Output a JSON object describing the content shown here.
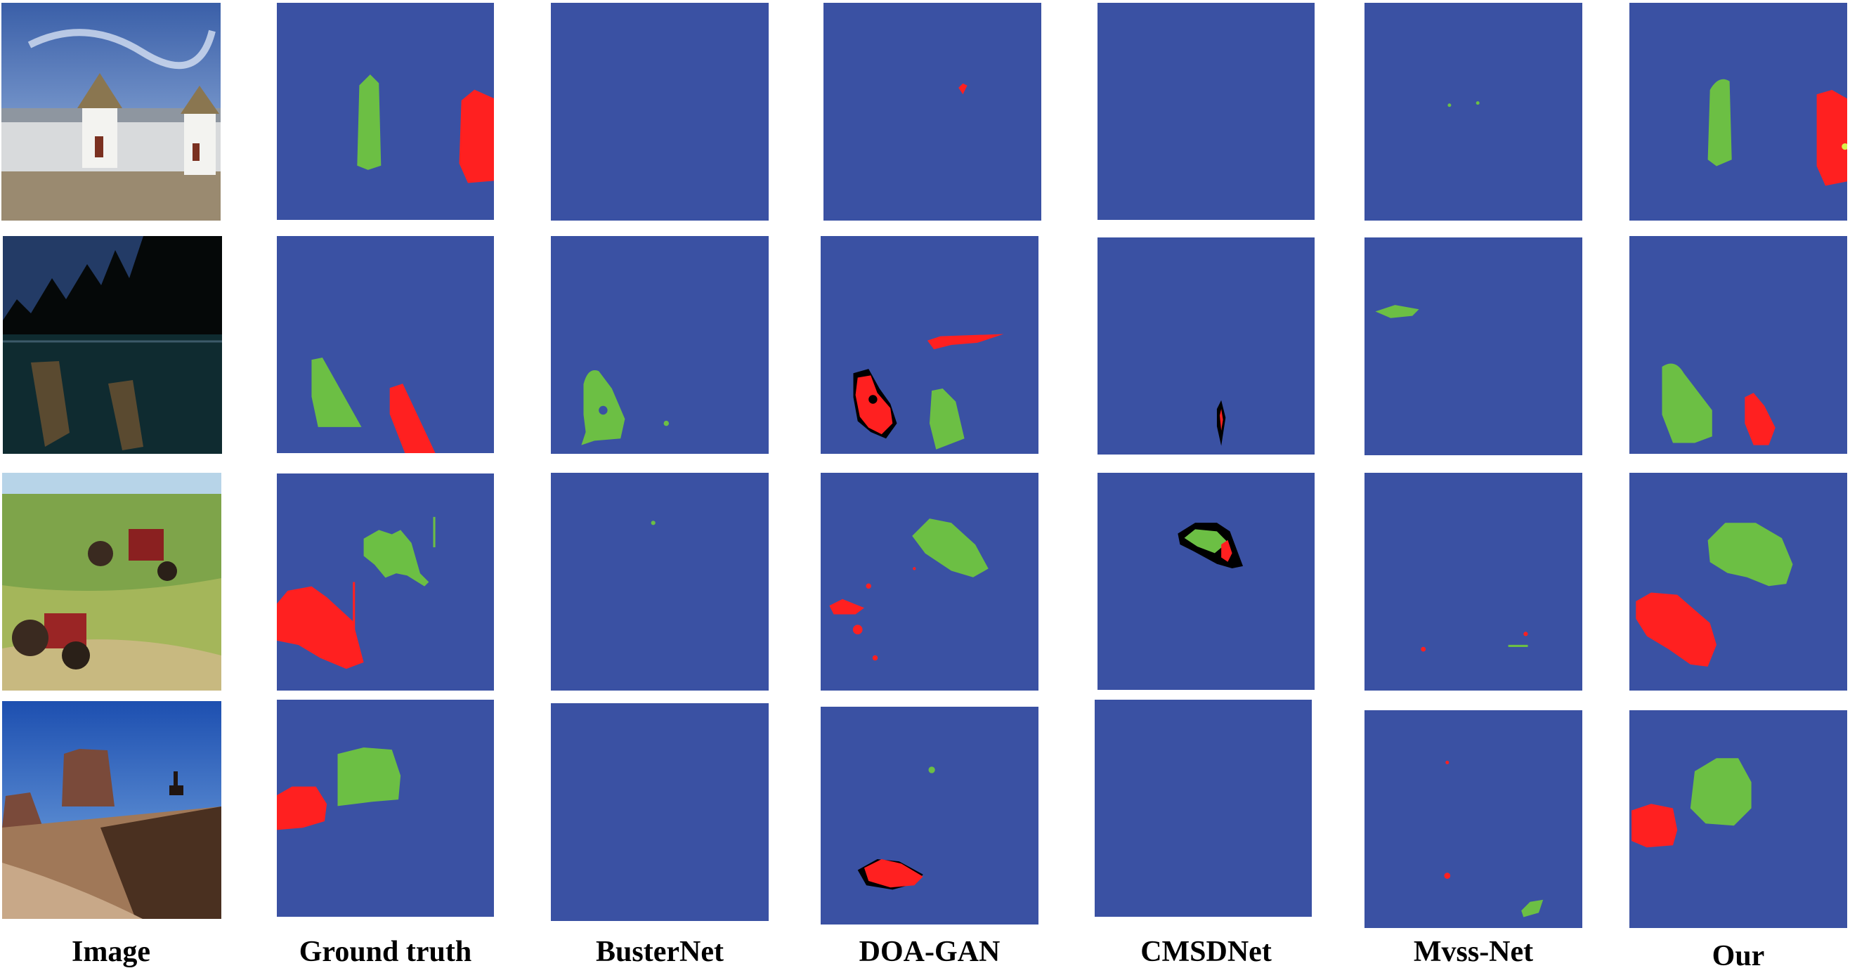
{
  "colors": {
    "background": "#3a51a3",
    "source": "#ff2020",
    "target": "#6cbf44",
    "black": "#000000"
  },
  "columns": [
    {
      "key": "image",
      "label": "Image"
    },
    {
      "key": "gt",
      "label": "Ground truth"
    },
    {
      "key": "busternet",
      "label": "BusterNet"
    },
    {
      "key": "doagan",
      "label": "DOA-GAN"
    },
    {
      "key": "cmsdnet",
      "label": "CMSDNet"
    },
    {
      "key": "mvssnet",
      "label": "Mvss-Net"
    },
    {
      "key": "our",
      "label": "Our"
    }
  ],
  "rows": [
    {
      "photo_subject": "windmills"
    },
    {
      "photo_subject": "boats-lake"
    },
    {
      "photo_subject": "tractors-field"
    },
    {
      "photo_subject": "canyon-horse"
    }
  ]
}
